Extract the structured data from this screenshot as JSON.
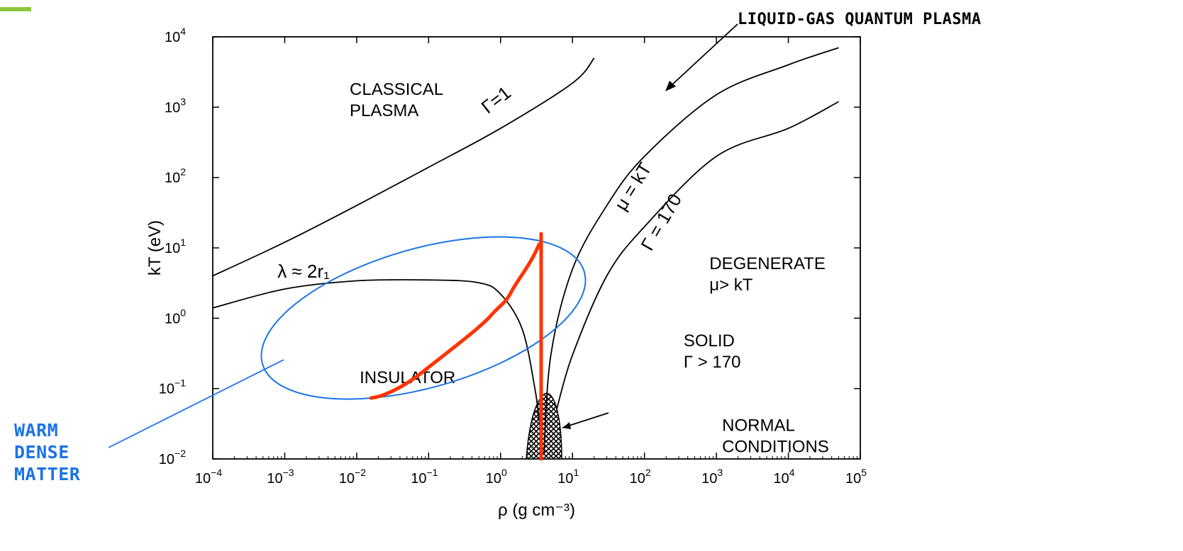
{
  "colors": {
    "accent": "#8dc63f",
    "annotation_blue": "#1a73e8",
    "annotation_red": "#ff3300",
    "ink": "#000000"
  },
  "annotations": {
    "top_callout": "LIQUID-GAS QUANTUM PLASMA",
    "warm_dense_matter": [
      "WARM",
      "DENSE",
      "MATTER"
    ]
  },
  "chart_data": {
    "type": "line",
    "log_x": true,
    "log_y": true,
    "xlabel": "ρ (g cm⁻³)",
    "ylabel": "kT (eV)",
    "xlim": [
      0.0001,
      100000
    ],
    "ylim": [
      0.01,
      10000
    ],
    "x_ticks": [
      {
        "base": "10",
        "exp": "−4"
      },
      {
        "base": "10",
        "exp": "−3"
      },
      {
        "base": "10",
        "exp": "−2"
      },
      {
        "base": "10",
        "exp": "−1"
      },
      {
        "base": "10",
        "exp": "0"
      },
      {
        "base": "10",
        "exp": "1"
      },
      {
        "base": "10",
        "exp": "2"
      },
      {
        "base": "10",
        "exp": "3"
      },
      {
        "base": "10",
        "exp": "4"
      },
      {
        "base": "10",
        "exp": "5"
      }
    ],
    "y_ticks": [
      {
        "base": "10",
        "exp": "−2"
      },
      {
        "base": "10",
        "exp": "−1"
      },
      {
        "base": "10",
        "exp": "0"
      },
      {
        "base": "10",
        "exp": "1"
      },
      {
        "base": "10",
        "exp": "2"
      },
      {
        "base": "10",
        "exp": "3"
      },
      {
        "base": "10",
        "exp": "4"
      }
    ],
    "series": [
      {
        "name": "Γ=1",
        "points": [
          [
            0.0001,
            4
          ],
          [
            0.001,
            12
          ],
          [
            0.01,
            40
          ],
          [
            0.1,
            140
          ],
          [
            1,
            500
          ],
          [
            10,
            2200
          ],
          [
            20,
            5000
          ]
        ]
      },
      {
        "name": "λ ≈ 2r₁",
        "points": [
          [
            0.0001,
            1.4
          ],
          [
            0.001,
            2.6
          ],
          [
            0.01,
            3.4
          ],
          [
            0.1,
            3.5
          ],
          [
            0.5,
            3.2
          ],
          [
            1,
            2.2
          ],
          [
            2,
            0.7
          ],
          [
            3,
            0.1
          ],
          [
            3.5,
            0.03
          ],
          [
            3.8,
            0.012
          ]
        ]
      },
      {
        "name": "μ = kT",
        "points": [
          [
            4,
            0.012
          ],
          [
            5,
            0.3
          ],
          [
            10,
            5
          ],
          [
            30,
            40
          ],
          [
            100,
            200
          ],
          [
            1000,
            1500
          ],
          [
            10000,
            4000
          ],
          [
            50000,
            7000
          ]
        ]
      },
      {
        "name": "Γ = 170",
        "points": [
          [
            6,
            0.05
          ],
          [
            10,
            0.3
          ],
          [
            30,
            4
          ],
          [
            100,
            20
          ],
          [
            1000,
            200
          ],
          [
            10000,
            500
          ],
          [
            50000,
            1200
          ]
        ]
      }
    ],
    "region_labels": [
      {
        "lines": [
          "CLASSICAL",
          "PLASMA"
        ],
        "x": 0.008,
        "y": 1500
      },
      {
        "lines": [
          "INSULATOR"
        ],
        "x": 0.011,
        "y": 0.12
      },
      {
        "lines": [
          "DEGENERATE",
          "μ> kT"
        ],
        "x": 800,
        "y": 5
      },
      {
        "lines": [
          "SOLID",
          "Γ > 170"
        ],
        "x": 350,
        "y": 0.4
      },
      {
        "lines": [
          "NORMAL",
          "CONDITIONS"
        ],
        "x": 1200,
        "y": 0.025
      }
    ]
  }
}
